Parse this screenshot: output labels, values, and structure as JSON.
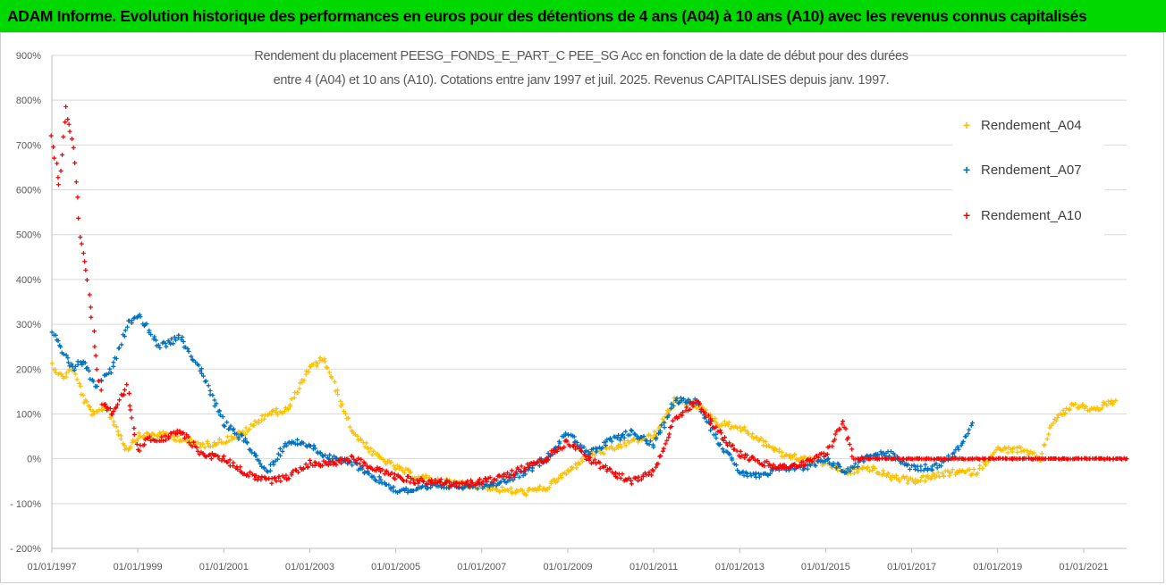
{
  "banner": {
    "title": "ADAM Informe. Evolution historique des performances en euros pour des détentions de 4 ans (A04) à 10 ans (A10) avec les revenus connus capitalisés"
  },
  "colors": {
    "banner": "#00d800",
    "A04": "#ffc000",
    "A07": "#0070c0",
    "A10": "#ff0000",
    "grid": "#d9d9d9"
  },
  "chart_data": {
    "type": "scatter",
    "title_lines": [
      "Rendement du placement PEESG_FONDS_E_PART_C PEE_SG Acc en fonction de la date de début pour des durées",
      "entre 4 (A04) et 10 ans (A10). Cotations entre janv 1997 et juil. 2025. Revenus CAPITALISES depuis janv. 1997."
    ],
    "xlabel": "",
    "ylabel": "",
    "xlim": [
      "1997-01-01",
      "2022-01-01"
    ],
    "ylim": [
      -200,
      900
    ],
    "x_ticks": [
      "01/01/1997",
      "01/01/1999",
      "01/01/2001",
      "01/01/2003",
      "01/01/2005",
      "01/01/2007",
      "01/01/2009",
      "01/01/2011",
      "01/01/2013",
      "01/01/2015",
      "01/01/2017",
      "01/01/2019",
      "01/01/2021"
    ],
    "y_ticks": [
      "- 200%",
      "- 100%",
      "0%",
      "100%",
      "200%",
      "300%",
      "400%",
      "500%",
      "600%",
      "700%",
      "800%",
      "900%"
    ],
    "grid": "horizontal",
    "legend_position": "right",
    "series": [
      {
        "name": "Rendement_A04",
        "color": "#ffc000",
        "points": [
          [
            "1997-01-01",
            210
          ],
          [
            "1997-04-01",
            180
          ],
          [
            "1997-07-01",
            205
          ],
          [
            "1997-10-01",
            130
          ],
          [
            "1998-01-01",
            95
          ],
          [
            "1998-04-01",
            120
          ],
          [
            "1998-07-01",
            70
          ],
          [
            "1998-10-01",
            20
          ],
          [
            "1999-01-01",
            50
          ],
          [
            "1999-07-01",
            55
          ],
          [
            "2000-01-01",
            45
          ],
          [
            "2000-07-01",
            30
          ],
          [
            "2001-01-01",
            40
          ],
          [
            "2001-07-01",
            60
          ],
          [
            "2002-01-01",
            100
          ],
          [
            "2002-07-01",
            110
          ],
          [
            "2002-10-01",
            160
          ],
          [
            "2003-01-01",
            200
          ],
          [
            "2003-05-01",
            225
          ],
          [
            "2003-09-01",
            140
          ],
          [
            "2004-01-01",
            60
          ],
          [
            "2004-07-01",
            10
          ],
          [
            "2005-01-01",
            -20
          ],
          [
            "2005-07-01",
            -40
          ],
          [
            "2006-01-01",
            -50
          ],
          [
            "2006-07-01",
            -55
          ],
          [
            "2007-01-01",
            -60
          ],
          [
            "2007-07-01",
            -70
          ],
          [
            "2008-01-01",
            -75
          ],
          [
            "2008-07-01",
            -65
          ],
          [
            "2009-01-01",
            -30
          ],
          [
            "2009-07-01",
            10
          ],
          [
            "2010-01-01",
            20
          ],
          [
            "2010-07-01",
            40
          ],
          [
            "2011-01-01",
            50
          ],
          [
            "2011-07-01",
            130
          ],
          [
            "2012-01-01",
            120
          ],
          [
            "2012-07-01",
            80
          ],
          [
            "2013-01-01",
            70
          ],
          [
            "2013-07-01",
            40
          ],
          [
            "2014-01-01",
            10
          ],
          [
            "2014-07-01",
            0
          ],
          [
            "2015-01-01",
            -10
          ],
          [
            "2015-07-01",
            -30
          ],
          [
            "2016-01-01",
            -20
          ],
          [
            "2016-07-01",
            -40
          ],
          [
            "2017-01-01",
            -50
          ],
          [
            "2017-07-01",
            -40
          ],
          [
            "2018-01-01",
            -30
          ],
          [
            "2018-07-01",
            -30
          ],
          [
            "2019-01-01",
            20
          ],
          [
            "2019-07-01",
            20
          ],
          [
            "2020-01-01",
            0
          ],
          [
            "2020-04-01",
            80
          ],
          [
            "2020-10-01",
            120
          ],
          [
            "2021-04-01",
            110
          ],
          [
            "2021-10-01",
            130
          ]
        ]
      },
      {
        "name": "Rendement_A07",
        "color": "#0070c0",
        "points": [
          [
            "1997-01-01",
            280
          ],
          [
            "1997-04-01",
            240
          ],
          [
            "1997-07-01",
            200
          ],
          [
            "1997-10-01",
            220
          ],
          [
            "1998-01-01",
            160
          ],
          [
            "1998-06-01",
            200
          ],
          [
            "1998-10-01",
            300
          ],
          [
            "1999-01-01",
            320
          ],
          [
            "1999-04-01",
            290
          ],
          [
            "1999-07-01",
            250
          ],
          [
            "2000-01-01",
            270
          ],
          [
            "2000-07-01",
            190
          ],
          [
            "2001-01-01",
            80
          ],
          [
            "2001-07-01",
            40
          ],
          [
            "2002-01-01",
            -30
          ],
          [
            "2002-07-01",
            40
          ],
          [
            "2003-01-01",
            30
          ],
          [
            "2003-07-01",
            0
          ],
          [
            "2004-01-01",
            -10
          ],
          [
            "2004-07-01",
            -40
          ],
          [
            "2005-01-01",
            -70
          ],
          [
            "2005-07-01",
            -70
          ],
          [
            "2006-01-01",
            -60
          ],
          [
            "2006-07-01",
            -60
          ],
          [
            "2007-01-01",
            -60
          ],
          [
            "2007-07-01",
            -50
          ],
          [
            "2008-01-01",
            -30
          ],
          [
            "2008-07-01",
            0
          ],
          [
            "2009-01-01",
            60
          ],
          [
            "2009-07-01",
            10
          ],
          [
            "2010-01-01",
            40
          ],
          [
            "2010-07-01",
            60
          ],
          [
            "2011-01-01",
            30
          ],
          [
            "2011-07-01",
            130
          ],
          [
            "2012-01-01",
            130
          ],
          [
            "2012-07-01",
            40
          ],
          [
            "2013-01-01",
            -30
          ],
          [
            "2013-07-01",
            -40
          ],
          [
            "2014-01-01",
            -20
          ],
          [
            "2014-07-01",
            -20
          ],
          [
            "2015-01-01",
            0
          ],
          [
            "2015-07-01",
            -30
          ],
          [
            "2016-01-01",
            10
          ],
          [
            "2016-07-01",
            10
          ],
          [
            "2017-01-01",
            -20
          ],
          [
            "2017-07-01",
            -20
          ],
          [
            "2018-01-01",
            10
          ],
          [
            "2018-06-01",
            80
          ]
        ]
      },
      {
        "name": "Rendement_A10",
        "color": "#ff0000",
        "points": [
          [
            "1997-01-01",
            720
          ],
          [
            "1997-03-01",
            610
          ],
          [
            "1997-05-01",
            780
          ],
          [
            "1997-07-01",
            700
          ],
          [
            "1997-09-01",
            500
          ],
          [
            "1997-11-01",
            400
          ],
          [
            "1998-01-01",
            250
          ],
          [
            "1998-03-01",
            120
          ],
          [
            "1998-06-01",
            100
          ],
          [
            "1998-10-01",
            160
          ],
          [
            "1999-01-01",
            20
          ],
          [
            "1999-04-01",
            50
          ],
          [
            "1999-07-01",
            40
          ],
          [
            "2000-01-01",
            60
          ],
          [
            "2000-07-01",
            10
          ],
          [
            "2001-01-01",
            0
          ],
          [
            "2001-07-01",
            -30
          ],
          [
            "2002-01-01",
            -50
          ],
          [
            "2002-07-01",
            -40
          ],
          [
            "2003-01-01",
            -10
          ],
          [
            "2003-07-01",
            -10
          ],
          [
            "2004-01-01",
            0
          ],
          [
            "2004-07-01",
            -20
          ],
          [
            "2005-01-01",
            -40
          ],
          [
            "2005-07-01",
            -50
          ],
          [
            "2006-01-01",
            -50
          ],
          [
            "2006-07-01",
            -60
          ],
          [
            "2007-01-01",
            -50
          ],
          [
            "2007-07-01",
            -40
          ],
          [
            "2008-01-01",
            -20
          ],
          [
            "2008-07-01",
            0
          ],
          [
            "2009-01-01",
            40
          ],
          [
            "2009-07-01",
            0
          ],
          [
            "2010-01-01",
            -30
          ],
          [
            "2010-07-01",
            -50
          ],
          [
            "2011-01-01",
            -30
          ],
          [
            "2011-07-01",
            90
          ],
          [
            "2012-01-01",
            130
          ],
          [
            "2012-07-01",
            60
          ],
          [
            "2013-01-01",
            10
          ],
          [
            "2013-07-01",
            -10
          ],
          [
            "2014-01-01",
            -20
          ],
          [
            "2014-07-01",
            -10
          ],
          [
            "2015-01-01",
            10
          ],
          [
            "2015-06-01",
            80
          ],
          [
            "2015-09-01",
            0
          ],
          [
            "2018-01-01",
            0
          ],
          [
            "2020-01-01",
            0
          ],
          [
            "2022-01-01",
            0
          ]
        ]
      }
    ]
  }
}
